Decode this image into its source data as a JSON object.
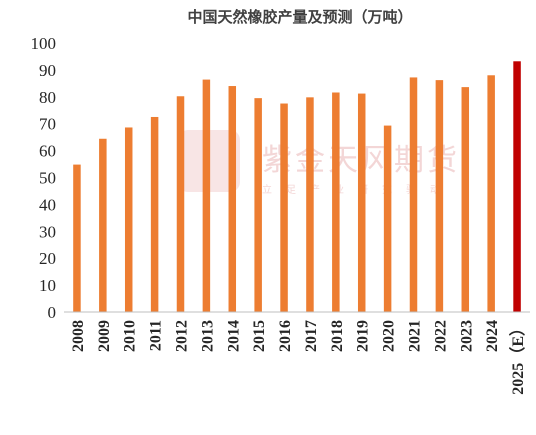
{
  "chart_data": {
    "type": "bar",
    "title": "中国天然橡胶产量及预测（万吨）",
    "xlabel": "",
    "ylabel": "",
    "ylim": [
      0,
      100
    ],
    "yticks": [
      0,
      10,
      20,
      30,
      40,
      50,
      60,
      70,
      80,
      90,
      100
    ],
    "categories": [
      "2008",
      "2009",
      "2010",
      "2011",
      "2012",
      "2013",
      "2014",
      "2015",
      "2016",
      "2017",
      "2018",
      "2019",
      "2020",
      "2021",
      "2022",
      "2023",
      "2024",
      "2025（E）"
    ],
    "values": [
      54.8,
      64.4,
      68.6,
      72.5,
      80.2,
      86.4,
      84.0,
      79.5,
      77.5,
      79.8,
      81.6,
      81.2,
      69.3,
      87.2,
      86.2,
      83.6,
      88.0,
      93.2
    ],
    "bar_color": "#ed7d31",
    "highlight_color": "#c00000",
    "highlight_index": 17,
    "grid": false,
    "legend": "none"
  },
  "watermark": {
    "logo_text": "紫金天风期货",
    "slogan": "立足产业研究驱动"
  }
}
